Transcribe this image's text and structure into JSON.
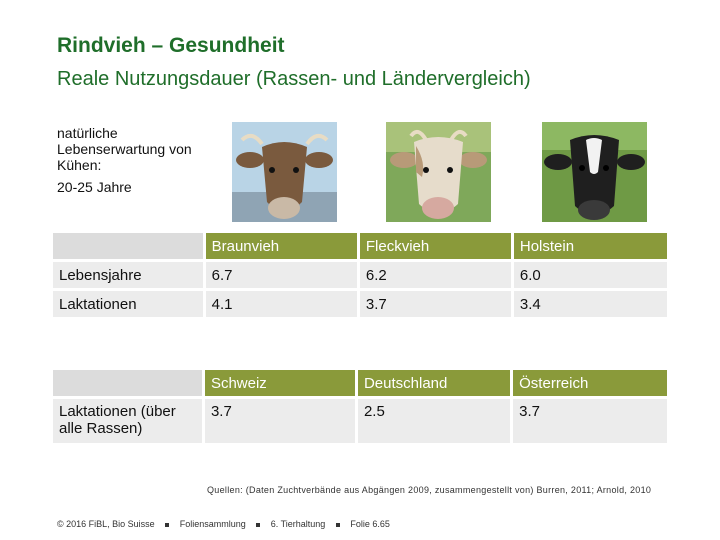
{
  "title": "Rindvieh – Gesundheit",
  "subtitle": "Reale Nutzungsdauer (Rassen- und Ländervergleich)",
  "intro": {
    "text": "natürliche Lebenserwartung von Kühen:",
    "age": "20-25 Jahre"
  },
  "photos": [
    {
      "name": "braunvieh-cow-photo",
      "color": "#7a5a3e"
    },
    {
      "name": "fleckvieh-cow-photo",
      "color": "#d9cdb8"
    },
    {
      "name": "holstein-cow-photo",
      "color": "#1f1f1f"
    }
  ],
  "table1": {
    "headers": [
      "",
      "Braunvieh",
      "Fleckvieh",
      "Holstein"
    ],
    "rows": [
      [
        "Lebensjahre",
        "6.7",
        "6.2",
        "6.0"
      ],
      [
        "Laktationen",
        "4.1",
        "3.7",
        "3.4"
      ]
    ]
  },
  "table2": {
    "headers": [
      "",
      "Schweiz",
      "Deutschland",
      "Österreich"
    ],
    "rows": [
      [
        "Laktationen (über alle Rassen)",
        "3.7",
        "2.5",
        "3.7"
      ]
    ]
  },
  "sources": "Quellen: (Daten Zuchtverbände aus Abgängen 2009, zusammengestellt von) Burren, 2011; Arnold, 2010",
  "footer": {
    "copyright": "© 2016 FiBL, Bio Suisse",
    "collection": "Foliensammlung",
    "chapter": "6. Tierhaltung",
    "slide": "Folie 6.65"
  }
}
